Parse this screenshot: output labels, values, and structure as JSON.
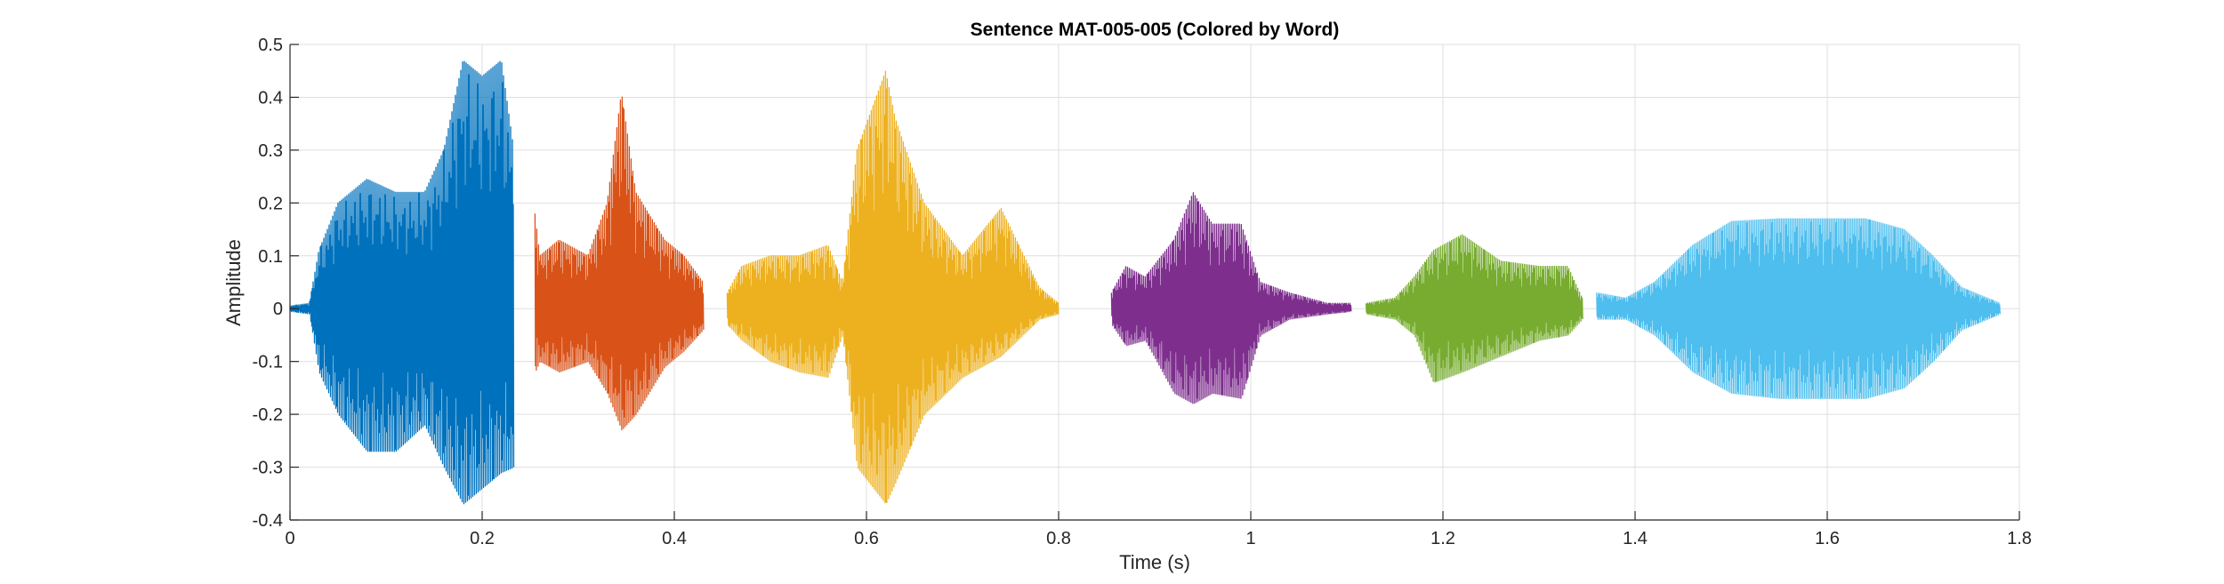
{
  "chart_data": {
    "type": "line",
    "title": "Sentence MAT-005-005 (Colored by Word)",
    "xlabel": "Time (s)",
    "ylabel": "Amplitude",
    "xlim": [
      0,
      1.8
    ],
    "ylim": [
      -0.4,
      0.5
    ],
    "grid": true,
    "x_ticks": [
      0,
      0.2,
      0.4,
      0.6,
      0.8,
      1.0,
      1.2,
      1.4,
      1.6,
      1.8
    ],
    "x_tick_labels": [
      "0",
      "0.2",
      "0.4",
      "0.6",
      "0.8",
      "1",
      "1.2",
      "1.4",
      "1.6",
      "1.8"
    ],
    "y_ticks": [
      -0.4,
      -0.3,
      -0.2,
      -0.1,
      0,
      0.1,
      0.2,
      0.3,
      0.4,
      0.5
    ],
    "y_tick_labels": [
      "-0.4",
      "-0.3",
      "-0.2",
      "-0.1",
      "0",
      "0.1",
      "0.2",
      "0.3",
      "0.4",
      "0.5"
    ],
    "series": [
      {
        "color": "#0072BD",
        "x": [
          0.0,
          0.02,
          0.03,
          0.05,
          0.08,
          0.11,
          0.14,
          0.16,
          0.18,
          0.2,
          0.22,
          0.233
        ],
        "max": [
          0.005,
          0.01,
          0.11,
          0.2,
          0.245,
          0.22,
          0.22,
          0.3,
          0.47,
          0.44,
          0.47,
          0.3
        ],
        "min": [
          -0.005,
          -0.01,
          -0.12,
          -0.2,
          -0.27,
          -0.27,
          -0.22,
          -0.3,
          -0.37,
          -0.34,
          -0.31,
          -0.3
        ]
      },
      {
        "color": "#D95319",
        "x": [
          0.255,
          0.26,
          0.28,
          0.31,
          0.33,
          0.345,
          0.36,
          0.39,
          0.41,
          0.43
        ],
        "max": [
          0.18,
          0.1,
          0.13,
          0.1,
          0.2,
          0.41,
          0.22,
          0.13,
          0.1,
          0.05
        ],
        "min": [
          -0.12,
          -0.1,
          -0.12,
          -0.1,
          -0.16,
          -0.23,
          -0.2,
          -0.11,
          -0.08,
          -0.04
        ]
      },
      {
        "color": "#EDB120",
        "x": [
          0.455,
          0.47,
          0.5,
          0.53,
          0.56,
          0.575,
          0.59,
          0.62,
          0.63,
          0.66,
          0.7,
          0.74,
          0.78,
          0.8
        ],
        "max": [
          0.03,
          0.08,
          0.1,
          0.1,
          0.12,
          0.05,
          0.3,
          0.45,
          0.36,
          0.2,
          0.1,
          0.19,
          0.04,
          0.01
        ],
        "min": [
          -0.03,
          -0.06,
          -0.1,
          -0.12,
          -0.13,
          -0.05,
          -0.3,
          -0.37,
          -0.33,
          -0.2,
          -0.13,
          -0.09,
          -0.02,
          -0.01
        ]
      },
      {
        "color": "#7E2F8E",
        "x": [
          0.855,
          0.87,
          0.89,
          0.92,
          0.94,
          0.96,
          0.99,
          1.01,
          1.04,
          1.08,
          1.105
        ],
        "max": [
          0.03,
          0.08,
          0.06,
          0.13,
          0.22,
          0.16,
          0.16,
          0.05,
          0.03,
          0.01,
          0.01
        ],
        "min": [
          -0.03,
          -0.07,
          -0.06,
          -0.16,
          -0.18,
          -0.16,
          -0.17,
          -0.05,
          -0.02,
          -0.01,
          -0.005
        ]
      },
      {
        "color": "#77AC30",
        "x": [
          1.12,
          1.15,
          1.17,
          1.19,
          1.22,
          1.26,
          1.3,
          1.33,
          1.345
        ],
        "max": [
          0.01,
          0.02,
          0.06,
          0.11,
          0.14,
          0.09,
          0.08,
          0.08,
          0.02
        ],
        "min": [
          -0.01,
          -0.02,
          -0.05,
          -0.14,
          -0.12,
          -0.09,
          -0.06,
          -0.05,
          -0.02
        ]
      },
      {
        "color": "#4DBEEE",
        "x": [
          1.36,
          1.39,
          1.42,
          1.46,
          1.5,
          1.55,
          1.6,
          1.64,
          1.68,
          1.71,
          1.74,
          1.78
        ],
        "max": [
          0.03,
          0.02,
          0.05,
          0.12,
          0.165,
          0.17,
          0.17,
          0.17,
          0.15,
          0.1,
          0.04,
          0.01
        ],
        "min": [
          -0.02,
          -0.02,
          -0.05,
          -0.12,
          -0.16,
          -0.17,
          -0.17,
          -0.17,
          -0.15,
          -0.1,
          -0.04,
          -0.01
        ]
      }
    ]
  }
}
